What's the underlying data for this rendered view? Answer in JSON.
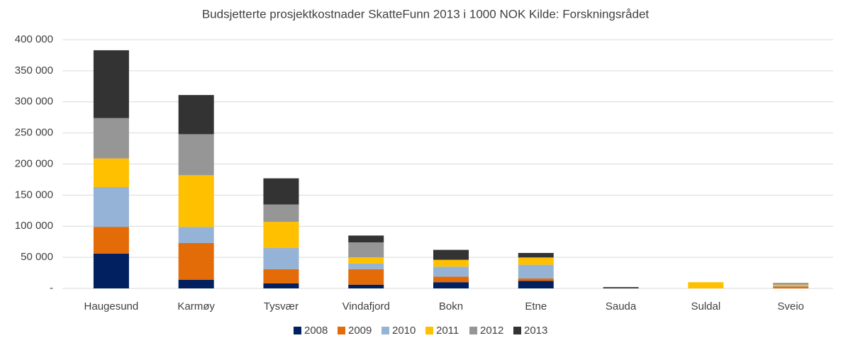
{
  "chart_data": {
    "type": "stacked_bar",
    "title": "Budsjetterte prosjektkostnader SkatteFunn 2013 i 1000 NOK Kilde: Forskningsrådet",
    "categories": [
      "Haugesund",
      "Karmøy",
      "Tysvær",
      "Vindafjord",
      "Bokn",
      "Etne",
      "Sauda",
      "Suldal",
      "Sveio"
    ],
    "series": [
      {
        "name": "2008",
        "color": "#002060",
        "values": [
          56000,
          14000,
          8000,
          6000,
          10000,
          12000,
          0,
          0,
          0
        ]
      },
      {
        "name": "2009",
        "color": "#e36c09",
        "values": [
          43000,
          59000,
          23000,
          25000,
          9000,
          4000,
          0,
          0,
          3000
        ]
      },
      {
        "name": "2010",
        "color": "#95b3d7",
        "values": [
          64000,
          26000,
          34000,
          9000,
          16000,
          22000,
          0,
          0,
          1000
        ]
      },
      {
        "name": "2011",
        "color": "#ffc000",
        "values": [
          46000,
          83000,
          42000,
          10000,
          11000,
          11000,
          0,
          10000,
          2000
        ]
      },
      {
        "name": "2012",
        "color": "#969696",
        "values": [
          65000,
          66000,
          28000,
          24000,
          0,
          1000,
          0,
          0,
          3000
        ]
      },
      {
        "name": "2013",
        "color": "#333333",
        "values": [
          109000,
          63000,
          42000,
          11000,
          16000,
          7000,
          2000,
          0,
          0
        ]
      }
    ],
    "ylim": [
      0,
      400000
    ],
    "yticks": [
      {
        "value": 0,
        "label": "-"
      },
      {
        "value": 50000,
        "label": "50 000"
      },
      {
        "value": 100000,
        "label": "100 000"
      },
      {
        "value": 150000,
        "label": "150 000"
      },
      {
        "value": 200000,
        "label": "200 000"
      },
      {
        "value": 250000,
        "label": "250 000"
      },
      {
        "value": 300000,
        "label": "300 000"
      },
      {
        "value": 350000,
        "label": "350 000"
      },
      {
        "value": 400000,
        "label": "400 000"
      }
    ],
    "grid": true,
    "legend": "bottom"
  }
}
